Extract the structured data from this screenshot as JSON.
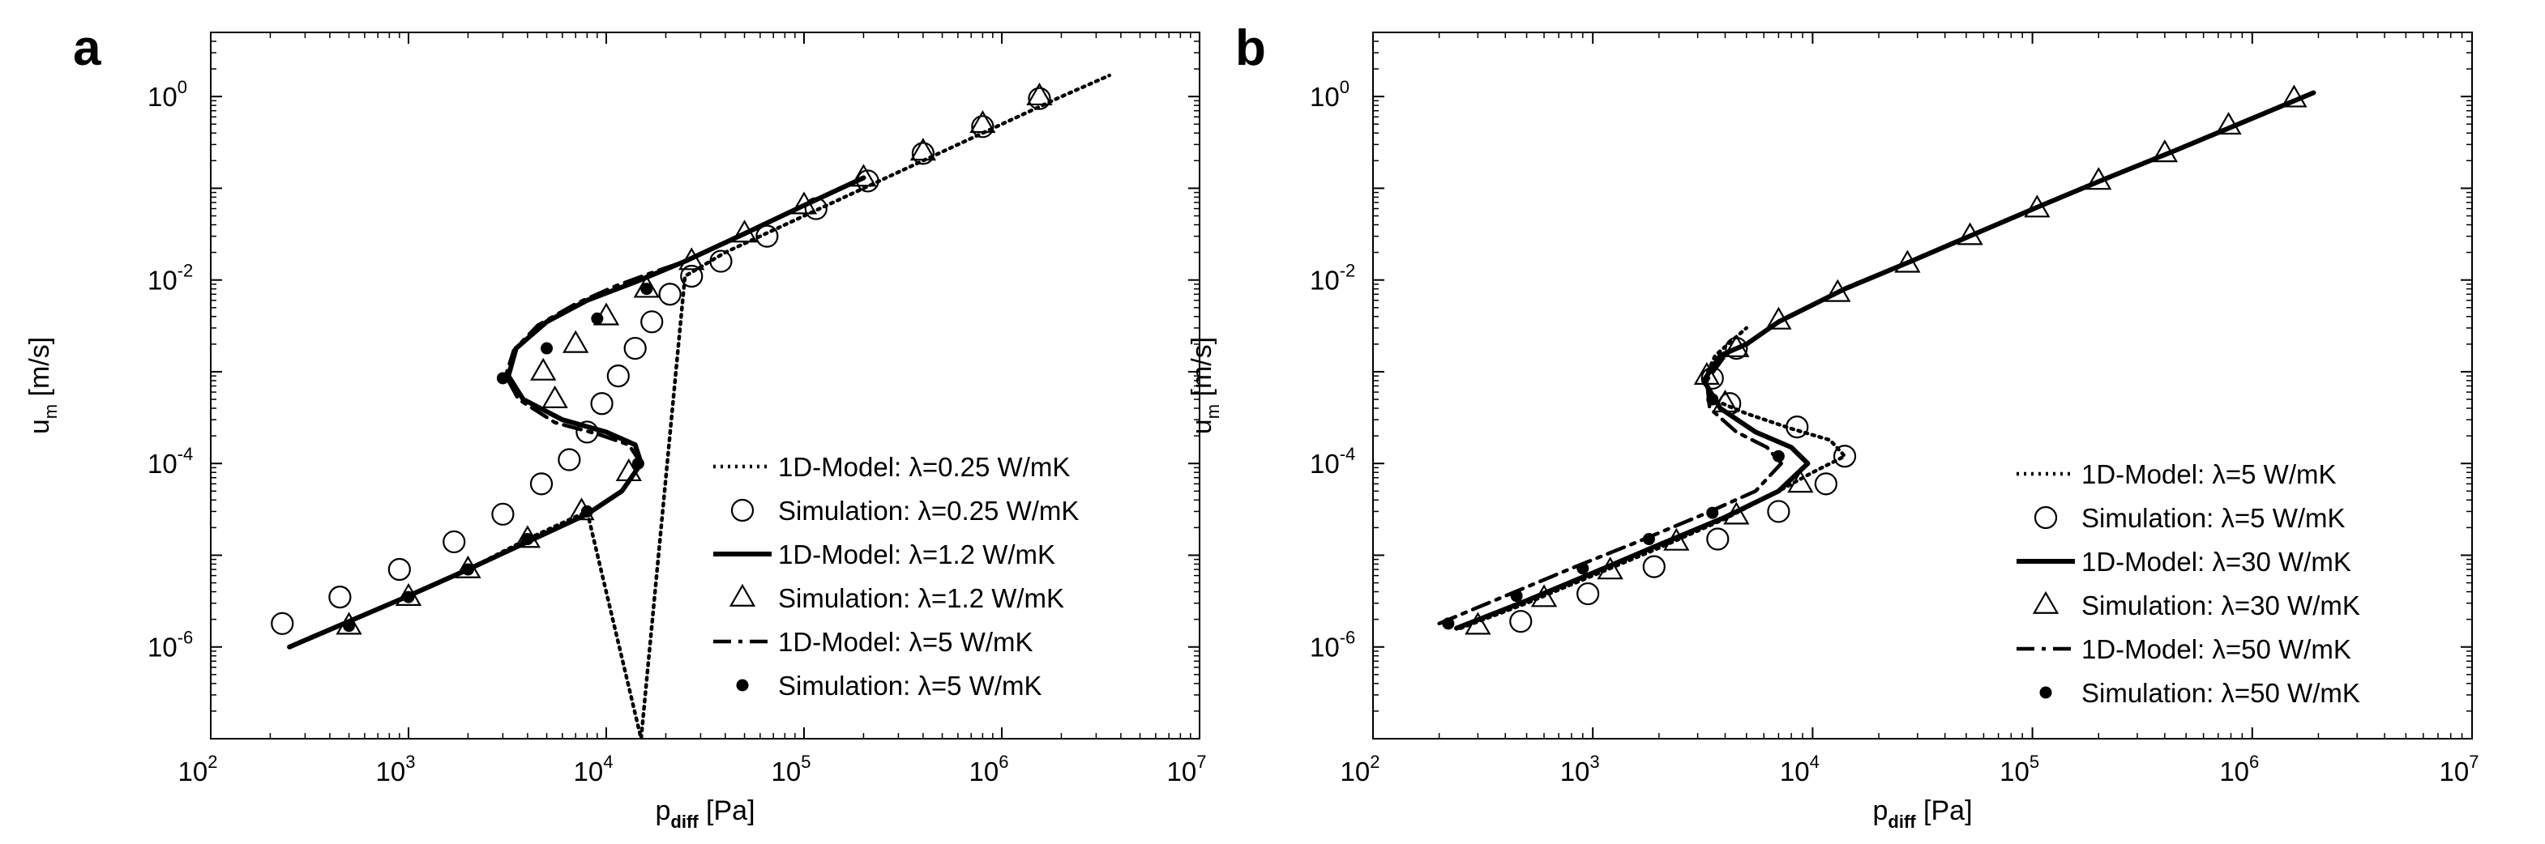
{
  "panels": [
    {
      "letter": "a",
      "xlabel": "p",
      "xlabel_sub": "diff",
      "xlabel_unit": "[Pa]",
      "ylabel": "u",
      "ylabel_sub": "m",
      "ylabel_unit": "[m/s]",
      "x_ticks": [
        "10",
        "10",
        "10",
        "10",
        "10",
        "10"
      ],
      "x_tick_exps": [
        "2",
        "3",
        "4",
        "5",
        "6",
        "7"
      ],
      "y_ticks": [
        "10",
        "10",
        "10",
        "10"
      ],
      "y_tick_exps": [
        "-6",
        "-4",
        "-2",
        "0"
      ],
      "legend": [
        "1D-Model: λ=0.25 W/mK",
        "Simulation: λ=0.25 W/mK",
        "1D-Model: λ=1.2 W/mK",
        "Simulation: λ=1.2 W/mK",
        "1D-Model: λ=5 W/mK",
        "Simulation: λ=5 W/mK"
      ]
    },
    {
      "letter": "b",
      "xlabel": "p",
      "xlabel_sub": "diff",
      "xlabel_unit": "[Pa]",
      "ylabel": "u",
      "ylabel_sub": "m",
      "ylabel_unit": "[m/s]",
      "x_ticks": [
        "10",
        "10",
        "10",
        "10",
        "10",
        "10"
      ],
      "x_tick_exps": [
        "2",
        "3",
        "4",
        "5",
        "6",
        "7"
      ],
      "y_ticks": [
        "10",
        "10",
        "10",
        "10"
      ],
      "y_tick_exps": [
        "-6",
        "-4",
        "-2",
        "0"
      ],
      "legend": [
        "1D-Model: λ=5 W/mK",
        "Simulation: λ=5 W/mK",
        "1D-Model: λ=30 W/mK",
        "Simulation: λ=30 W/mK",
        "1D-Model: λ=50 W/mK",
        "Simulation: λ=50 W/mK"
      ]
    }
  ],
  "chart_data": [
    {
      "type": "line",
      "panel": "a",
      "xscale": "log",
      "yscale": "log",
      "xlim": [
        100,
        10000000
      ],
      "ylim": [
        1e-07,
        5
      ],
      "xlabel": "p_diff [Pa]",
      "ylabel": "u_m [m/s]",
      "grid": false,
      "legend_position": "bottom-right",
      "series": [
        {
          "name": "1D-Model: λ=0.25 W/mK",
          "kind": "line",
          "style": "dotted",
          "x": [
            250,
            500,
            1000,
            2000,
            4000,
            8000,
            15000,
            25000,
            40000,
            70000,
            120000,
            250000,
            500000,
            1000000,
            2000000,
            3500000
          ],
          "y": [
            1e-06,
            1.9e-06,
            3.6e-06,
            7e-06,
            1.5e-05,
            3e-05,
            1e-07,
            0.011,
            0.02,
            0.035,
            0.06,
            0.125,
            0.25,
            0.5,
            1.0,
            1.7
          ]
        },
        {
          "name": "Simulation: λ=0.25 W/mK",
          "kind": "markers",
          "marker": "circle-open",
          "x": [
            230,
            450,
            900,
            1700,
            3000,
            4700,
            6500,
            8000,
            9500,
            11500,
            14000,
            17000,
            21000,
            27000,
            38000,
            65000,
            115000,
            210000,
            400000,
            800000,
            1550000
          ],
          "y": [
            1.8e-06,
            3.5e-06,
            7e-06,
            1.4e-05,
            2.8e-05,
            6e-05,
            0.00011,
            0.00022,
            0.00045,
            0.0009,
            0.0018,
            0.0035,
            0.007,
            0.011,
            0.016,
            0.03,
            0.06,
            0.12,
            0.24,
            0.47,
            0.95
          ]
        },
        {
          "name": "1D-Model: λ=1.2 W/mK",
          "kind": "line",
          "style": "solid",
          "x": [
            250,
            500,
            1000,
            2000,
            4000,
            8000,
            12000,
            15000,
            14000,
            10000,
            6000,
            3800,
            3200,
            3500,
            5000,
            8000,
            14000,
            25000,
            50000,
            100000,
            200000
          ],
          "y": [
            1e-06,
            1.9e-06,
            3.6e-06,
            7e-06,
            1.4e-05,
            2.8e-05,
            5e-05,
            0.0001,
            0.00016,
            0.00022,
            0.0003,
            0.0005,
            0.0009,
            0.0018,
            0.0035,
            0.006,
            0.0095,
            0.016,
            0.032,
            0.065,
            0.13
          ]
        },
        {
          "name": "Simulation: λ=1.2 W/mK",
          "kind": "markers",
          "marker": "triangle-open",
          "x": [
            500,
            1000,
            2000,
            4000,
            7500,
            13000,
            5500,
            4800,
            7000,
            10000,
            16000,
            27000,
            50000,
            100000,
            200000,
            400000,
            800000,
            1550000
          ],
          "y": [
            1.7e-06,
            3.5e-06,
            7e-06,
            1.5e-05,
            3e-05,
            8e-05,
            0.0005,
            0.001,
            0.002,
            0.004,
            0.008,
            0.016,
            0.032,
            0.065,
            0.13,
            0.25,
            0.5,
            1.0
          ]
        },
        {
          "name": "1D-Model: λ=5 W/mK",
          "kind": "line",
          "style": "dashdot",
          "x": [
            250,
            500,
            1000,
            2000,
            4000,
            8000,
            12000,
            15000,
            13000,
            9000,
            5500,
            3600,
            3100,
            3400,
            4500,
            7000,
            11000,
            17000,
            25000
          ],
          "y": [
            1e-06,
            1.9e-06,
            3.6e-06,
            7e-06,
            1.4e-05,
            2.8e-05,
            5e-05,
            0.0001,
            0.00016,
            0.00021,
            0.00028,
            0.0005,
            0.0009,
            0.0017,
            0.0032,
            0.0055,
            0.0085,
            0.012,
            0.016
          ]
        },
        {
          "name": "Simulation: λ=5 W/mK",
          "kind": "markers",
          "marker": "dot-filled",
          "x": [
            500,
            1000,
            2000,
            4000,
            8000,
            14500,
            3000,
            5000,
            9000,
            16000
          ],
          "y": [
            1.7e-06,
            3.5e-06,
            7e-06,
            1.5e-05,
            3e-05,
            0.0001,
            0.00085,
            0.0018,
            0.0038,
            0.008
          ]
        }
      ]
    },
    {
      "type": "line",
      "panel": "b",
      "xscale": "log",
      "yscale": "log",
      "xlim": [
        100,
        10000000
      ],
      "ylim": [
        1e-07,
        5
      ],
      "xlabel": "p_diff [Pa]",
      "ylabel": "u_m [m/s]",
      "grid": false,
      "legend_position": "bottom-right",
      "series": [
        {
          "name": "1D-Model: λ=5 W/mK",
          "kind": "line",
          "style": "dotted",
          "x": [
            250,
            500,
            1000,
            2000,
            4000,
            7000,
            10000,
            14000,
            12000,
            8000,
            5000,
            3500,
            3200,
            3600,
            5000
          ],
          "y": [
            1.6e-06,
            3e-06,
            6e-06,
            1.2e-05,
            2.5e-05,
            5e-05,
            8e-05,
            0.00012,
            0.00018,
            0.00024,
            0.00035,
            0.0005,
            0.0008,
            0.0015,
            0.003
          ]
        },
        {
          "name": "Simulation: λ=5 W/mK",
          "kind": "markers",
          "marker": "circle-open",
          "x": [
            470,
            950,
            1900,
            3700,
            7000,
            11500,
            14000,
            8500,
            4200,
            3500,
            4500
          ],
          "y": [
            1.9e-06,
            3.8e-06,
            7.5e-06,
            1.5e-05,
            3e-05,
            6e-05,
            0.00012,
            0.00025,
            0.00045,
            0.00085,
            0.0018
          ]
        },
        {
          "name": "1D-Model: λ=30 W/mK",
          "kind": "line",
          "style": "solid",
          "x": [
            240,
            500,
            1000,
            2000,
            4000,
            7000,
            9500,
            8000,
            5500,
            3800,
            3200,
            3800,
            5000,
            7000,
            14000,
            28000,
            55000,
            110000,
            220000,
            450000,
            900000,
            1900000
          ],
          "y": [
            1.6e-06,
            3.2e-06,
            6.4e-06,
            1.3e-05,
            2.6e-05,
            5e-05,
            0.0001,
            0.00015,
            0.00022,
            0.0004,
            0.0008,
            0.0015,
            0.002,
            0.0035,
            0.008,
            0.016,
            0.032,
            0.065,
            0.13,
            0.26,
            0.52,
            1.1
          ]
        },
        {
          "name": "Simulation: λ=30 W/mK",
          "kind": "markers",
          "marker": "triangle-open",
          "x": [
            300,
            600,
            1200,
            2400,
            4500,
            8800,
            4000,
            3300,
            4500,
            7000,
            13000,
            27000,
            52000,
            105000,
            200000,
            400000,
            780000,
            1550000
          ],
          "y": [
            1.7e-06,
            3.4e-06,
            6.8e-06,
            1.4e-05,
            2.7e-05,
            6e-05,
            0.00045,
            0.0009,
            0.0018,
            0.0036,
            0.0072,
            0.015,
            0.03,
            0.06,
            0.12,
            0.24,
            0.48,
            0.95
          ]
        },
        {
          "name": "1D-Model: λ=50 W/mK",
          "kind": "line",
          "style": "dashdot",
          "x": [
            200,
            400,
            800,
            1600,
            3200,
            5500,
            7200,
            6200,
            4500,
            3400,
            3300,
            4000
          ],
          "y": [
            1.8e-06,
            3.6e-06,
            7.2e-06,
            1.4e-05,
            2.8e-05,
            5e-05,
            0.0001,
            0.00015,
            0.00022,
            0.0004,
            0.0008,
            0.0015
          ]
        },
        {
          "name": "Simulation: λ=50 W/mK",
          "kind": "markers",
          "marker": "dot-filled",
          "x": [
            220,
            450,
            900,
            1800,
            3500,
            7000,
            3500
          ],
          "y": [
            1.8e-06,
            3.6e-06,
            7.2e-06,
            1.5e-05,
            2.9e-05,
            0.00012,
            0.0005
          ]
        }
      ]
    }
  ]
}
